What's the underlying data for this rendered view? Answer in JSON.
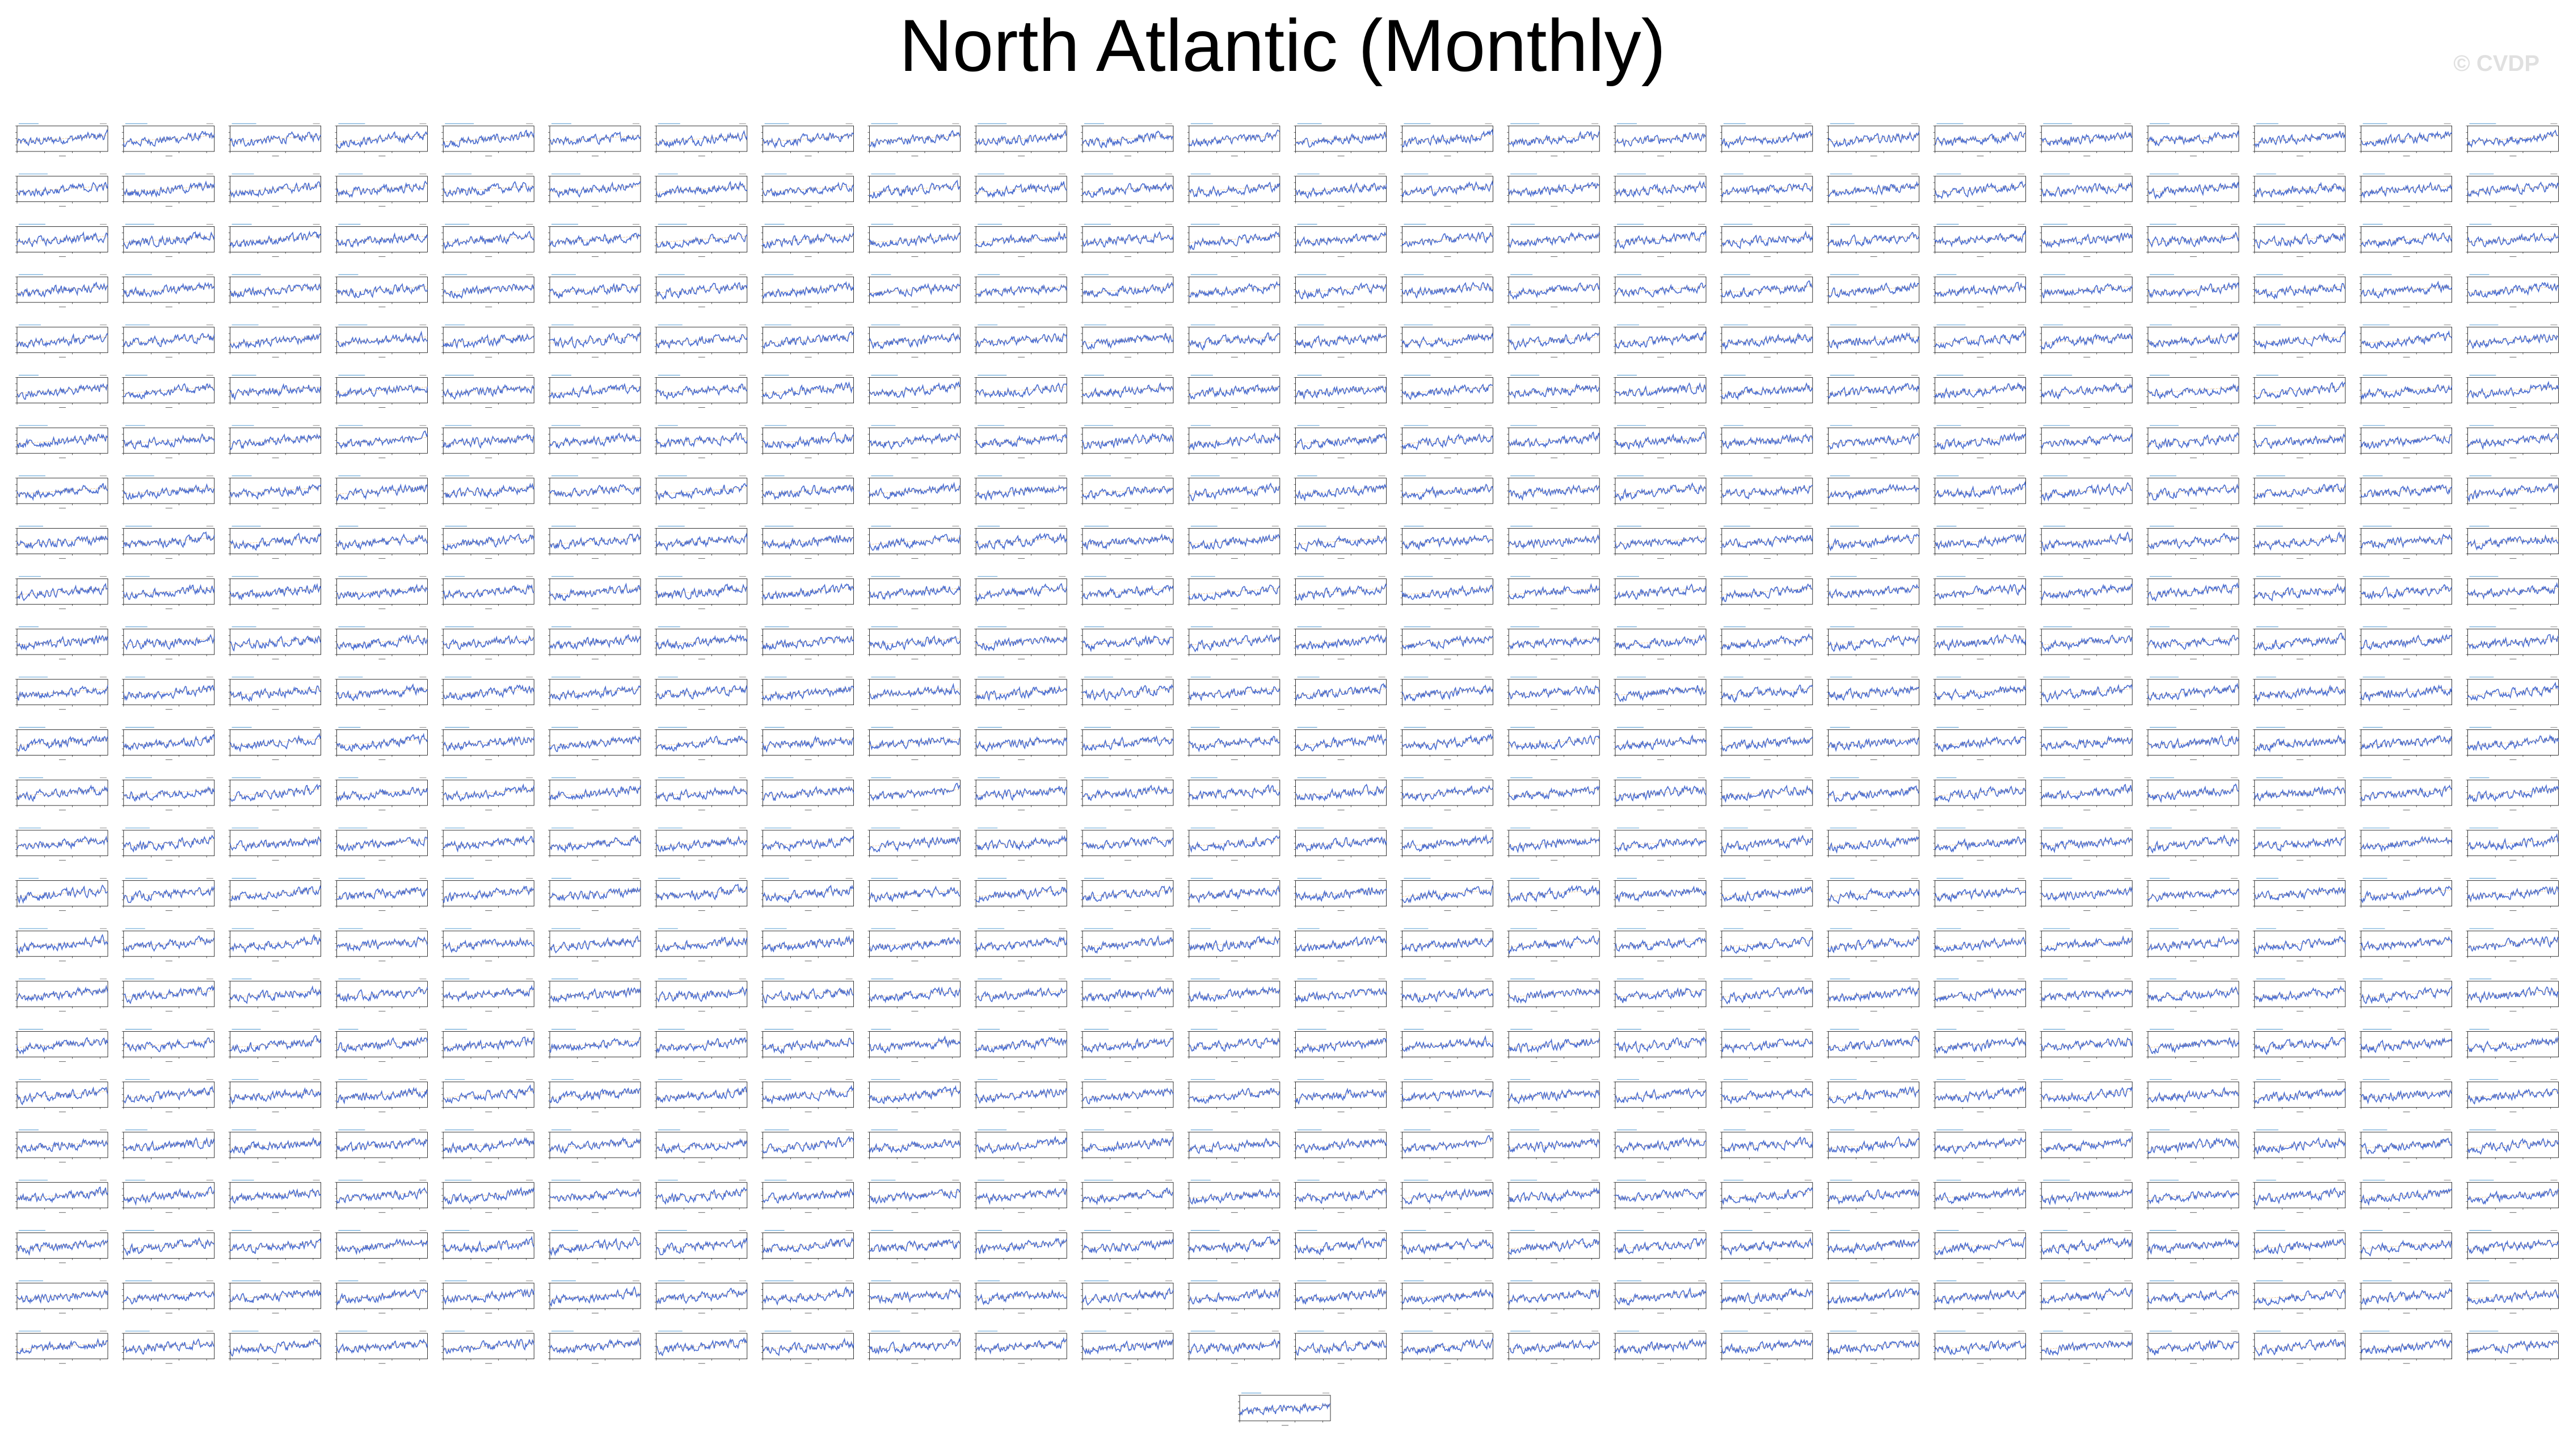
{
  "figure": {
    "title": "North Atlantic (Monthly)",
    "watermark": "© CVDP"
  },
  "chart_data": {
    "type": "line",
    "layout": "small multiples",
    "panel_count": 601,
    "panel_columns": 24,
    "panel_rows": 25,
    "trailing_panels": 1,
    "series_color": "#4a6ccf",
    "trend_color": "#e8a040",
    "xlabel": "Years",
    "xlim": [
      1850,
      2014
    ],
    "x_ticks": [
      1850,
      1900,
      1950,
      2000
    ],
    "ylim": [
      -1,
      1
    ],
    "y_ticks": [
      -1,
      -0.5,
      0,
      0.5,
      1
    ],
    "description": "Each panel shows a monthly North Atlantic index time series (blue) with a slight upward trend."
  }
}
